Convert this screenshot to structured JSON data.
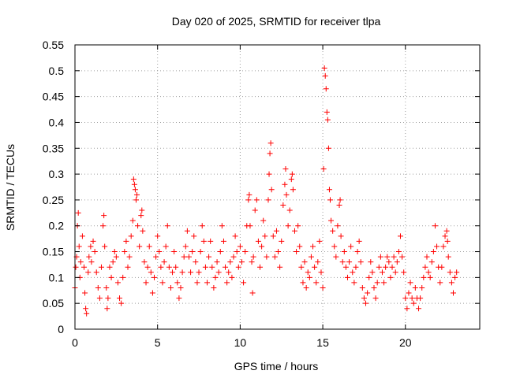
{
  "chart_data": {
    "type": "scatter",
    "title": "Day 020 of 2025, SRMTID for receiver tlpa",
    "xlabel": "GPS time / hours",
    "ylabel": "SRMTID / TECUs",
    "xlim": [
      0,
      24.5
    ],
    "ylim": [
      0,
      0.55
    ],
    "xticks": [
      0,
      5,
      10,
      15,
      20
    ],
    "yticks": [
      0,
      0.05,
      0.1,
      0.15,
      0.2,
      0.25,
      0.3,
      0.35,
      0.4,
      0.45,
      0.5,
      0.55
    ],
    "xtick_labels": [
      "0",
      "5",
      "10",
      "15",
      "20"
    ],
    "ytick_labels": [
      "0",
      "0.05",
      "0.1",
      "0.15",
      "0.2",
      "0.25",
      "0.3",
      "0.35",
      "0.4",
      "0.45",
      "0.5",
      "0.55"
    ],
    "grid": true,
    "marker": "plus",
    "color": "#ff0000",
    "series": [
      {
        "name": "SRMTID",
        "points": [
          [
            0.0,
            0.08
          ],
          [
            0.05,
            0.12
          ],
          [
            0.1,
            0.14
          ],
          [
            0.15,
            0.2
          ],
          [
            0.2,
            0.225
          ],
          [
            0.25,
            0.16
          ],
          [
            0.3,
            0.1
          ],
          [
            0.35,
            0.13
          ],
          [
            0.45,
            0.18
          ],
          [
            0.55,
            0.12
          ],
          [
            0.6,
            0.07
          ],
          [
            0.65,
            0.04
          ],
          [
            0.7,
            0.03
          ],
          [
            0.8,
            0.11
          ],
          [
            0.85,
            0.14
          ],
          [
            0.95,
            0.16
          ],
          [
            1.0,
            0.13
          ],
          [
            1.1,
            0.17
          ],
          [
            1.2,
            0.15
          ],
          [
            1.3,
            0.11
          ],
          [
            1.4,
            0.08
          ],
          [
            1.5,
            0.06
          ],
          [
            1.6,
            0.12
          ],
          [
            1.7,
            0.2
          ],
          [
            1.75,
            0.22
          ],
          [
            1.8,
            0.16
          ],
          [
            1.9,
            0.08
          ],
          [
            1.95,
            0.04
          ],
          [
            2.0,
            0.06
          ],
          [
            2.1,
            0.12
          ],
          [
            2.2,
            0.1
          ],
          [
            2.3,
            0.13
          ],
          [
            2.4,
            0.15
          ],
          [
            2.5,
            0.14
          ],
          [
            2.6,
            0.09
          ],
          [
            2.7,
            0.06
          ],
          [
            2.8,
            0.05
          ],
          [
            2.9,
            0.1
          ],
          [
            3.0,
            0.15
          ],
          [
            3.1,
            0.17
          ],
          [
            3.2,
            0.12
          ],
          [
            3.3,
            0.14
          ],
          [
            3.4,
            0.18
          ],
          [
            3.5,
            0.21
          ],
          [
            3.55,
            0.29
          ],
          [
            3.6,
            0.28
          ],
          [
            3.65,
            0.27
          ],
          [
            3.7,
            0.25
          ],
          [
            3.75,
            0.26
          ],
          [
            3.8,
            0.2
          ],
          [
            3.9,
            0.16
          ],
          [
            4.0,
            0.22
          ],
          [
            4.05,
            0.23
          ],
          [
            4.1,
            0.19
          ],
          [
            4.2,
            0.13
          ],
          [
            4.3,
            0.09
          ],
          [
            4.4,
            0.12
          ],
          [
            4.5,
            0.16
          ],
          [
            4.6,
            0.11
          ],
          [
            4.7,
            0.07
          ],
          [
            4.8,
            0.1
          ],
          [
            4.9,
            0.14
          ],
          [
            5.0,
            0.18
          ],
          [
            5.1,
            0.15
          ],
          [
            5.2,
            0.12
          ],
          [
            5.3,
            0.09
          ],
          [
            5.4,
            0.13
          ],
          [
            5.5,
            0.16
          ],
          [
            5.6,
            0.2
          ],
          [
            5.7,
            0.12
          ],
          [
            5.8,
            0.08
          ],
          [
            5.9,
            0.11
          ],
          [
            6.0,
            0.15
          ],
          [
            6.1,
            0.12
          ],
          [
            6.2,
            0.09
          ],
          [
            6.3,
            0.06
          ],
          [
            6.4,
            0.08
          ],
          [
            6.5,
            0.11
          ],
          [
            6.6,
            0.14
          ],
          [
            6.7,
            0.16
          ],
          [
            6.8,
            0.19
          ],
          [
            6.9,
            0.14
          ],
          [
            7.0,
            0.11
          ],
          [
            7.1,
            0.15
          ],
          [
            7.2,
            0.18
          ],
          [
            7.3,
            0.13
          ],
          [
            7.4,
            0.09
          ],
          [
            7.5,
            0.11
          ],
          [
            7.6,
            0.15
          ],
          [
            7.7,
            0.2
          ],
          [
            7.8,
            0.17
          ],
          [
            7.9,
            0.12
          ],
          [
            8.0,
            0.09
          ],
          [
            8.1,
            0.14
          ],
          [
            8.2,
            0.17
          ],
          [
            8.3,
            0.12
          ],
          [
            8.4,
            0.08
          ],
          [
            8.5,
            0.1
          ],
          [
            8.6,
            0.13
          ],
          [
            8.7,
            0.11
          ],
          [
            8.8,
            0.15
          ],
          [
            8.9,
            0.2
          ],
          [
            9.0,
            0.17
          ],
          [
            9.1,
            0.12
          ],
          [
            9.2,
            0.09
          ],
          [
            9.3,
            0.11
          ],
          [
            9.4,
            0.13
          ],
          [
            9.5,
            0.1
          ],
          [
            9.6,
            0.14
          ],
          [
            9.7,
            0.18
          ],
          [
            9.8,
            0.15
          ],
          [
            9.9,
            0.12
          ],
          [
            10.0,
            0.16
          ],
          [
            10.1,
            0.13
          ],
          [
            10.2,
            0.09
          ],
          [
            10.3,
            0.15
          ],
          [
            10.4,
            0.2
          ],
          [
            10.5,
            0.25
          ],
          [
            10.55,
            0.26
          ],
          [
            10.6,
            0.2
          ],
          [
            10.7,
            0.13
          ],
          [
            10.75,
            0.07
          ],
          [
            10.8,
            0.14
          ],
          [
            10.9,
            0.23
          ],
          [
            11.0,
            0.25
          ],
          [
            11.1,
            0.17
          ],
          [
            11.2,
            0.12
          ],
          [
            11.3,
            0.16
          ],
          [
            11.4,
            0.21
          ],
          [
            11.5,
            0.18
          ],
          [
            11.6,
            0.14
          ],
          [
            11.7,
            0.25
          ],
          [
            11.75,
            0.3
          ],
          [
            11.8,
            0.34
          ],
          [
            11.85,
            0.36
          ],
          [
            11.9,
            0.27
          ],
          [
            12.0,
            0.18
          ],
          [
            12.1,
            0.14
          ],
          [
            12.2,
            0.19
          ],
          [
            12.3,
            0.15
          ],
          [
            12.4,
            0.12
          ],
          [
            12.5,
            0.17
          ],
          [
            12.6,
            0.24
          ],
          [
            12.7,
            0.28
          ],
          [
            12.75,
            0.31
          ],
          [
            12.8,
            0.26
          ],
          [
            12.9,
            0.2
          ],
          [
            13.0,
            0.23
          ],
          [
            13.1,
            0.29
          ],
          [
            13.15,
            0.3
          ],
          [
            13.2,
            0.27
          ],
          [
            13.3,
            0.19
          ],
          [
            13.4,
            0.15
          ],
          [
            13.5,
            0.2
          ],
          [
            13.6,
            0.16
          ],
          [
            13.7,
            0.12
          ],
          [
            13.8,
            0.09
          ],
          [
            13.9,
            0.13
          ],
          [
            14.0,
            0.08
          ],
          [
            14.1,
            0.11
          ],
          [
            14.2,
            0.1
          ],
          [
            14.3,
            0.14
          ],
          [
            14.4,
            0.16
          ],
          [
            14.5,
            0.12
          ],
          [
            14.6,
            0.09
          ],
          [
            14.7,
            0.13
          ],
          [
            14.8,
            0.17
          ],
          [
            14.9,
            0.11
          ],
          [
            15.0,
            0.08
          ],
          [
            15.05,
            0.31
          ],
          [
            15.1,
            0.505
          ],
          [
            15.15,
            0.49
          ],
          [
            15.2,
            0.465
          ],
          [
            15.25,
            0.42
          ],
          [
            15.3,
            0.405
          ],
          [
            15.35,
            0.35
          ],
          [
            15.4,
            0.27
          ],
          [
            15.45,
            0.25
          ],
          [
            15.5,
            0.21
          ],
          [
            15.6,
            0.19
          ],
          [
            15.7,
            0.16
          ],
          [
            15.8,
            0.14
          ],
          [
            15.9,
            0.2
          ],
          [
            16.0,
            0.24
          ],
          [
            16.05,
            0.25
          ],
          [
            16.1,
            0.18
          ],
          [
            16.2,
            0.13
          ],
          [
            16.3,
            0.15
          ],
          [
            16.4,
            0.12
          ],
          [
            16.5,
            0.1
          ],
          [
            16.6,
            0.13
          ],
          [
            16.7,
            0.16
          ],
          [
            16.8,
            0.11
          ],
          [
            16.9,
            0.09
          ],
          [
            17.0,
            0.12
          ],
          [
            17.1,
            0.15
          ],
          [
            17.2,
            0.17
          ],
          [
            17.3,
            0.13
          ],
          [
            17.4,
            0.08
          ],
          [
            17.5,
            0.06
          ],
          [
            17.6,
            0.05
          ],
          [
            17.7,
            0.07
          ],
          [
            17.8,
            0.1
          ],
          [
            17.9,
            0.13
          ],
          [
            18.0,
            0.11
          ],
          [
            18.1,
            0.08
          ],
          [
            18.2,
            0.06
          ],
          [
            18.3,
            0.09
          ],
          [
            18.4,
            0.12
          ],
          [
            18.5,
            0.14
          ],
          [
            18.6,
            0.11
          ],
          [
            18.7,
            0.09
          ],
          [
            18.8,
            0.12
          ],
          [
            18.9,
            0.14
          ],
          [
            19.0,
            0.13
          ],
          [
            19.1,
            0.1
          ],
          [
            19.2,
            0.12
          ],
          [
            19.3,
            0.14
          ],
          [
            19.4,
            0.11
          ],
          [
            19.5,
            0.13
          ],
          [
            19.6,
            0.15
          ],
          [
            19.7,
            0.18
          ],
          [
            19.8,
            0.14
          ],
          [
            19.9,
            0.11
          ],
          [
            20.0,
            0.06
          ],
          [
            20.1,
            0.04
          ],
          [
            20.2,
            0.07
          ],
          [
            20.3,
            0.09
          ],
          [
            20.4,
            0.06
          ],
          [
            20.5,
            0.05
          ],
          [
            20.6,
            0.08
          ],
          [
            20.7,
            0.06
          ],
          [
            20.8,
            0.04
          ],
          [
            20.9,
            0.06
          ],
          [
            21.0,
            0.08
          ],
          [
            21.1,
            0.1
          ],
          [
            21.2,
            0.12
          ],
          [
            21.3,
            0.14
          ],
          [
            21.4,
            0.11
          ],
          [
            21.5,
            0.1
          ],
          [
            21.6,
            0.13
          ],
          [
            21.7,
            0.15
          ],
          [
            21.8,
            0.2
          ],
          [
            21.9,
            0.16
          ],
          [
            22.0,
            0.12
          ],
          [
            22.1,
            0.09
          ],
          [
            22.2,
            0.12
          ],
          [
            22.3,
            0.16
          ],
          [
            22.4,
            0.18
          ],
          [
            22.5,
            0.19
          ],
          [
            22.55,
            0.17
          ],
          [
            22.6,
            0.14
          ],
          [
            22.7,
            0.11
          ],
          [
            22.8,
            0.09
          ],
          [
            22.9,
            0.07
          ],
          [
            23.0,
            0.1
          ],
          [
            23.1,
            0.11
          ]
        ]
      }
    ]
  }
}
